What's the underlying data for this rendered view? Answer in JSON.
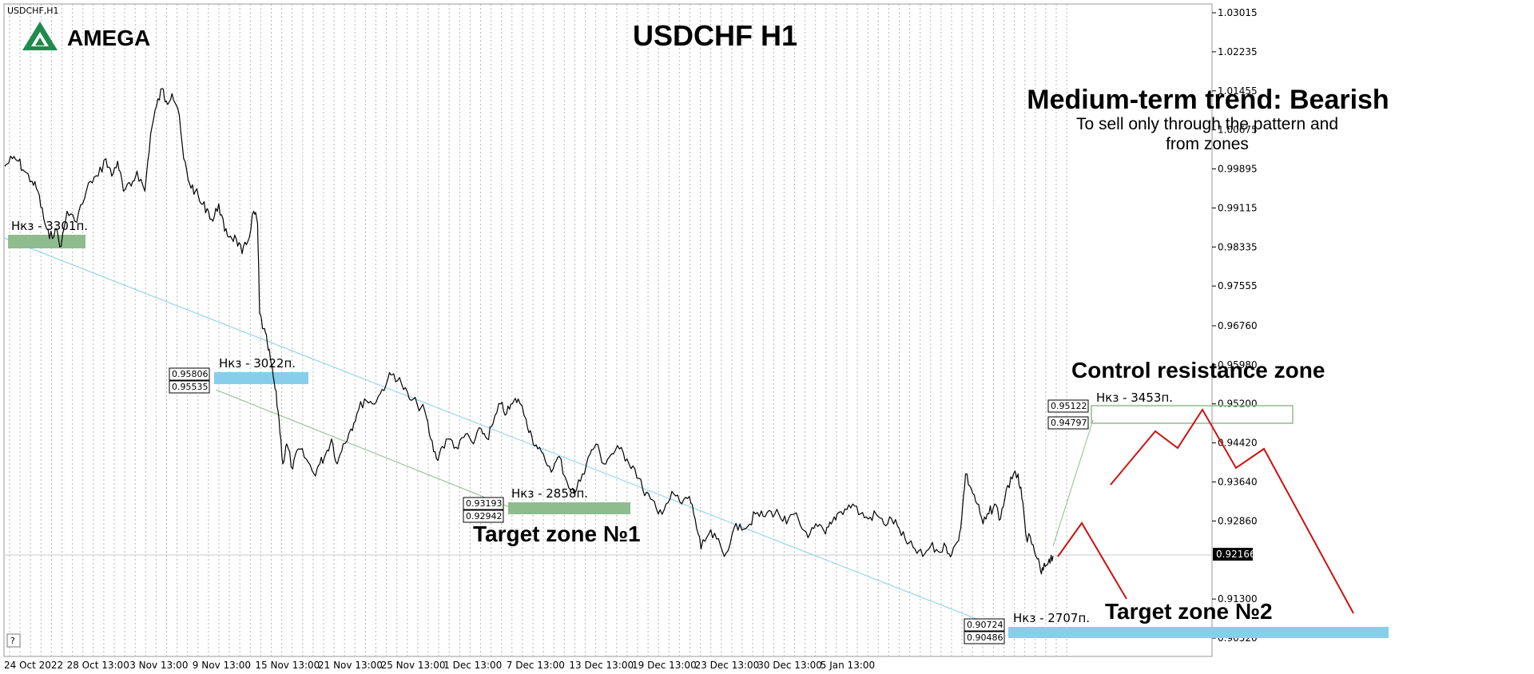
{
  "symbol_label": "USDCHF,H1",
  "logo_text": "AMEGA",
  "title": "USDCHF H1",
  "trend_heading": "Medium-term trend: Bearish",
  "trend_note_line1": "To sell only through the pattern and",
  "trend_note_line2": "from zones",
  "control_zone_label": "Control resistance zone",
  "target1_label": "Target zone №1",
  "target2_label": "Target zone №2",
  "help_marker": "?",
  "current_price": "0.92166",
  "colors": {
    "zone_green": "#8fbc8f",
    "zone_blue": "#87ceeb",
    "trendline_blue": "#87ceeb",
    "trendline_green": "#8fbc8f",
    "forecast_red": "#cc1111",
    "logo_green": "#1f8a4c"
  },
  "chart_data": {
    "type": "line",
    "title": "USDCHF H1",
    "x_ticks": [
      "24 Oct 2022",
      "28 Oct 13:00",
      "3 Nov 13:00",
      "9 Nov 13:00",
      "15 Nov 13:00",
      "21 Nov 13:00",
      "25 Nov 13:00",
      "1 Dec 13:00",
      "7 Dec 13:00",
      "13 Dec 13:00",
      "19 Dec 13:00",
      "23 Dec 13:00",
      "30 Dec 13:00",
      "5 Jan 13:00"
    ],
    "y_ticks": [
      "1.03015",
      "1.02235",
      "1.01455",
      "1.00675",
      "0.99895",
      "0.99115",
      "0.98335",
      "0.97555",
      "0.96760",
      "0.95980",
      "0.95200",
      "0.94420",
      "0.93640",
      "0.92860",
      "0.92166",
      "0.91300",
      "0.90520"
    ],
    "ylim": [
      0.9025,
      1.0308
    ],
    "grid": "vertical dashed",
    "series": [
      {
        "values": [
          [
            0,
            0.9995
          ],
          [
            8,
            1.001
          ],
          [
            14,
            1.0005
          ],
          [
            20,
            0.9985
          ],
          [
            28,
            0.9965
          ],
          [
            34,
            0.9945
          ],
          [
            40,
            0.989
          ],
          [
            46,
            0.985
          ],
          [
            52,
            0.987
          ],
          [
            58,
            0.9835
          ],
          [
            64,
            0.9905
          ],
          [
            72,
            0.9885
          ],
          [
            80,
            0.992
          ],
          [
            88,
            0.9965
          ],
          [
            96,
            0.9975
          ],
          [
            104,
            1.001
          ],
          [
            110,
            0.9975
          ],
          [
            116,
            1.0005
          ],
          [
            122,
            0.9945
          ],
          [
            130,
            0.9955
          ],
          [
            136,
            0.9985
          ],
          [
            144,
            0.9945
          ],
          [
            150,
            1.006
          ],
          [
            156,
            1.0115
          ],
          [
            162,
            1.015
          ],
          [
            166,
            1.0125
          ],
          [
            172,
            1.014
          ],
          [
            178,
            1.011
          ],
          [
            184,
            1.001
          ],
          [
            190,
            0.996
          ],
          [
            196,
            0.9945
          ],
          [
            202,
            0.992
          ],
          [
            208,
            0.991
          ],
          [
            214,
            0.9885
          ],
          [
            220,
            0.992
          ],
          [
            226,
            0.9865
          ],
          [
            232,
            0.9855
          ],
          [
            238,
            0.985
          ],
          [
            244,
            0.982
          ],
          [
            250,
            0.9845
          ],
          [
            256,
            0.9905
          ],
          [
            260,
            0.988
          ],
          [
            262,
            0.97
          ],
          [
            266,
            0.967
          ],
          [
            270,
            0.964
          ],
          [
            274,
            0.96
          ],
          [
            278,
            0.955
          ],
          [
            282,
            0.949
          ],
          [
            286,
            0.94
          ],
          [
            290,
            0.944
          ],
          [
            296,
            0.939
          ],
          [
            302,
            0.943
          ],
          [
            310,
            0.941
          ],
          [
            318,
            0.938
          ],
          [
            324,
            0.94
          ],
          [
            330,
            0.942
          ],
          [
            336,
            0.945
          ],
          [
            342,
            0.94
          ],
          [
            348,
            0.944
          ],
          [
            356,
            0.947
          ],
          [
            362,
            0.95
          ],
          [
            370,
            0.953
          ],
          [
            378,
            0.952
          ],
          [
            386,
            0.954
          ],
          [
            394,
            0.957
          ],
          [
            400,
            0.958
          ],
          [
            408,
            0.956
          ],
          [
            416,
            0.953
          ],
          [
            424,
            0.952
          ],
          [
            432,
            0.9505
          ],
          [
            438,
            0.945
          ],
          [
            444,
            0.941
          ],
          [
            450,
            0.9435
          ],
          [
            458,
            0.945
          ],
          [
            466,
            0.943
          ],
          [
            474,
            0.946
          ],
          [
            482,
            0.944
          ],
          [
            490,
            0.947
          ],
          [
            496,
            0.945
          ],
          [
            502,
            0.948
          ],
          [
            510,
            0.952
          ],
          [
            516,
            0.95
          ],
          [
            522,
            0.952
          ],
          [
            528,
            0.953
          ],
          [
            536,
            0.949
          ],
          [
            542,
            0.9455
          ],
          [
            548,
            0.943
          ],
          [
            556,
            0.9405
          ],
          [
            564,
            0.939
          ],
          [
            570,
            0.9415
          ],
          [
            578,
            0.9365
          ],
          [
            586,
            0.934
          ],
          [
            594,
            0.938
          ],
          [
            602,
            0.942
          ],
          [
            608,
            0.944
          ],
          [
            616,
            0.94
          ],
          [
            624,
            0.942
          ],
          [
            632,
            0.943
          ],
          [
            640,
            0.941
          ],
          [
            648,
            0.939
          ],
          [
            656,
            0.935
          ],
          [
            664,
            0.933
          ],
          [
            672,
            0.93
          ],
          [
            680,
            0.932
          ],
          [
            688,
            0.934
          ],
          [
            696,
            0.932
          ],
          [
            704,
            0.9335
          ],
          [
            710,
            0.929
          ],
          [
            716,
            0.923
          ],
          [
            724,
            0.926
          ],
          [
            732,
            0.925
          ],
          [
            740,
            0.9215
          ],
          [
            748,
            0.926
          ],
          [
            756,
            0.928
          ],
          [
            764,
            0.9275
          ],
          [
            772,
            0.93
          ],
          [
            780,
            0.9295
          ],
          [
            788,
            0.9305
          ],
          [
            796,
            0.93
          ],
          [
            804,
            0.928
          ],
          [
            812,
            0.93
          ],
          [
            820,
            0.927
          ],
          [
            828,
            0.926
          ],
          [
            836,
            0.9275
          ],
          [
            844,
            0.926
          ],
          [
            850,
            0.928
          ],
          [
            856,
            0.93
          ],
          [
            864,
            0.931
          ],
          [
            872,
            0.932
          ],
          [
            880,
            0.93
          ],
          [
            888,
            0.929
          ],
          [
            896,
            0.93
          ],
          [
            904,
            0.928
          ],
          [
            912,
            0.929
          ],
          [
            920,
            0.927
          ],
          [
            928,
            0.924
          ],
          [
            936,
            0.923
          ],
          [
            944,
            0.9215
          ],
          [
            952,
            0.9235
          ],
          [
            960,
            0.9225
          ],
          [
            968,
            0.9235
          ],
          [
            974,
            0.922
          ],
          [
            980,
            0.9245
          ],
          [
            984,
            0.929
          ],
          [
            988,
            0.938
          ],
          [
            994,
            0.935
          ],
          [
            1000,
            0.932
          ],
          [
            1006,
            0.928
          ],
          [
            1012,
            0.93
          ],
          [
            1018,
            0.932
          ],
          [
            1024,
            0.929
          ],
          [
            1030,
            0.935
          ],
          [
            1036,
            0.937
          ],
          [
            1042,
            0.938
          ],
          [
            1046,
            0.933
          ],
          [
            1050,
            0.926
          ],
          [
            1056,
            0.924
          ],
          [
            1062,
            0.921
          ],
          [
            1066,
            0.918
          ],
          [
            1070,
            0.9195
          ],
          [
            1074,
            0.921
          ],
          [
            1078,
            0.9216
          ]
        ]
      }
    ],
    "zones": [
      {
        "label": "Нкз - 3301п.",
        "price_labels": []
      },
      {
        "label": "Нкз - 3022п.",
        "price_labels": [
          "0.95806",
          "0.95535"
        ]
      },
      {
        "label": "Нкз - 2858п.",
        "price_labels": [
          "0.93193",
          "0.92942"
        ]
      },
      {
        "label": "Нкз - 3453п.",
        "price_labels": [
          "0.95122",
          "0.94797"
        ]
      },
      {
        "label": "Нкз - 2707п.",
        "price_labels": [
          "0.90724",
          "0.90486"
        ]
      }
    ]
  }
}
